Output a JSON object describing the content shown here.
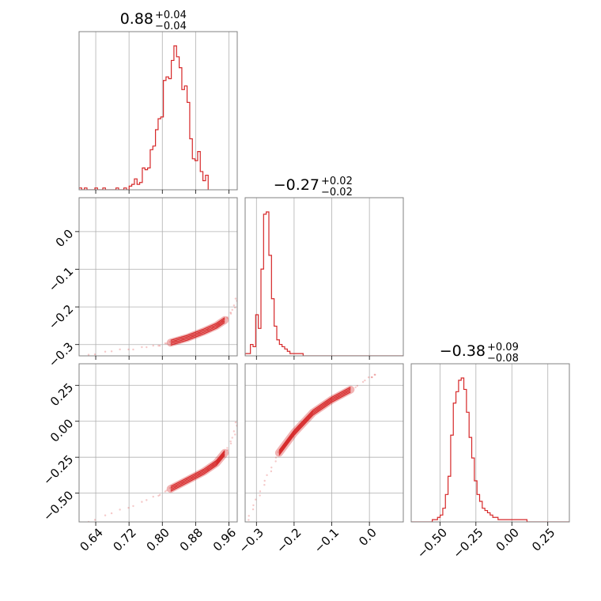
{
  "chart_data": {
    "type": "corner",
    "color": "#d62728",
    "params": [
      {
        "range": [
          0.6,
          0.98
        ],
        "ticks": [
          0.64,
          0.72,
          0.8,
          0.88,
          0.96
        ],
        "tick_labels": [
          "0.64",
          "0.72",
          "0.80",
          "0.88",
          "0.96"
        ],
        "title": {
          "median": "0.88",
          "plus": "+0.04",
          "minus": "−0.04"
        }
      },
      {
        "range": [
          -0.33,
          0.09
        ],
        "ticks": [
          -0.3,
          -0.2,
          -0.1,
          0.0
        ],
        "tick_labels": [
          "−0.3",
          "−0.2",
          "−0.1",
          "0.0"
        ],
        "title": {
          "median": "−0.27",
          "plus": "+0.02",
          "minus": "−0.02"
        }
      },
      {
        "range": [
          -0.7,
          0.4
        ],
        "ticks": [
          -0.5,
          -0.25,
          0.0,
          0.25
        ],
        "tick_labels": [
          "−0.50",
          "−0.25",
          "0.00",
          "0.25"
        ],
        "title": {
          "median": "−0.38",
          "plus": "+0.09",
          "minus": "−0.08"
        }
      }
    ],
    "hist": [
      {
        "edges_start": 0.6,
        "bin_width": 0.00633,
        "counts": [
          1,
          0,
          1,
          0,
          0,
          0,
          1,
          0,
          0,
          1,
          0,
          0,
          0,
          0,
          1,
          0,
          0,
          1,
          0,
          2,
          3,
          6,
          3,
          4,
          12,
          11,
          12,
          22,
          24,
          33,
          39,
          40,
          60,
          62,
          61,
          71,
          79,
          73,
          67,
          55,
          57,
          48,
          28,
          17,
          16,
          21,
          10,
          5,
          8
        ]
      },
      {
        "edges_start": -0.33,
        "bin_width": 0.007,
        "counts": [
          1,
          1,
          5,
          4,
          18,
          12,
          38,
          62,
          63,
          44,
          25,
          13,
          7,
          5,
          4,
          3,
          2,
          1,
          1,
          1,
          1,
          1,
          0,
          0,
          0,
          0,
          0,
          0,
          0,
          0,
          0,
          0,
          0,
          0,
          0,
          0,
          0,
          0,
          0,
          0,
          0,
          0,
          0,
          0,
          0,
          0,
          0,
          0,
          0,
          0,
          0,
          0,
          0,
          0,
          0,
          0,
          0,
          0,
          0,
          0
        ]
      },
      {
        "edges_start": -0.7,
        "bin_width": 0.0183,
        "counts": [
          0,
          0,
          0,
          0,
          0,
          0,
          0,
          0,
          1,
          1,
          2,
          3,
          6,
          12,
          20,
          38,
          52,
          57,
          62,
          63,
          58,
          48,
          37,
          28,
          18,
          12,
          9,
          6,
          5,
          4,
          3,
          2,
          2,
          1,
          1,
          1,
          1,
          1,
          1,
          1,
          1,
          1,
          1,
          1,
          0,
          0,
          0,
          0,
          0,
          0,
          0,
          0,
          0,
          0,
          0,
          0,
          0,
          0,
          0,
          0
        ]
      }
    ],
    "pairs": [
      {
        "x": 0,
        "y": 1,
        "curve": [
          [
            0.6,
            -0.33
          ],
          [
            0.7,
            -0.315
          ],
          [
            0.78,
            -0.305
          ],
          [
            0.82,
            -0.295
          ],
          [
            0.86,
            -0.282
          ],
          [
            0.9,
            -0.265
          ],
          [
            0.93,
            -0.25
          ],
          [
            0.95,
            -0.235
          ],
          [
            0.97,
            -0.21
          ],
          [
            0.98,
            -0.17
          ]
        ]
      },
      {
        "x": 0,
        "y": 2,
        "curve": [
          [
            0.6,
            -0.72
          ],
          [
            0.7,
            -0.62
          ],
          [
            0.78,
            -0.53
          ],
          [
            0.82,
            -0.47
          ],
          [
            0.86,
            -0.41
          ],
          [
            0.9,
            -0.35
          ],
          [
            0.93,
            -0.29
          ],
          [
            0.95,
            -0.22
          ],
          [
            0.97,
            -0.12
          ],
          [
            0.98,
            0.02
          ]
        ]
      },
      {
        "x": 1,
        "y": 2,
        "curve": [
          [
            -0.33,
            -0.72
          ],
          [
            -0.3,
            -0.55
          ],
          [
            -0.27,
            -0.38
          ],
          [
            -0.24,
            -0.22
          ],
          [
            -0.2,
            -0.08
          ],
          [
            -0.15,
            0.06
          ],
          [
            -0.1,
            0.15
          ],
          [
            -0.05,
            0.22
          ],
          [
            0.0,
            0.3
          ],
          [
            0.02,
            0.33
          ]
        ]
      }
    ]
  }
}
